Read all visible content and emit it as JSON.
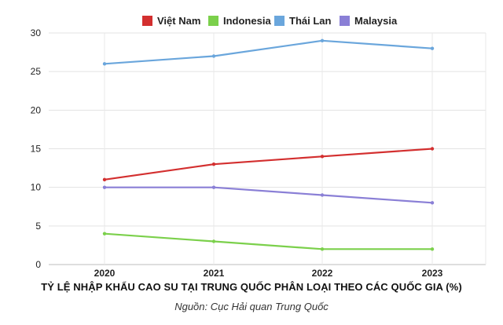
{
  "chart_data": {
    "type": "line",
    "title": "TỶ LỆ NHẬP KHẨU CAO SU TẠI TRUNG QUỐC PHÂN LOẠI THEO CÁC QUỐC GIA (%)",
    "source": "Nguồn: Cục Hải quan Trung Quốc",
    "categories": [
      "2020",
      "2021",
      "2022",
      "2023"
    ],
    "ylim": [
      0,
      30
    ],
    "yticks": [
      0,
      5,
      10,
      15,
      20,
      25,
      30
    ],
    "grid": true,
    "legend_position": "top",
    "series": [
      {
        "name": "Việt Nam",
        "color": "#d32f2f",
        "values": [
          11,
          13,
          14,
          15
        ]
      },
      {
        "name": "Indonesia",
        "color": "#7bd04b",
        "values": [
          4,
          3,
          2,
          2
        ]
      },
      {
        "name": "Thái Lan",
        "color": "#6aa6dc",
        "values": [
          26,
          27,
          29,
          28
        ]
      },
      {
        "name": "Malaysia",
        "color": "#8a7fd6",
        "values": [
          10,
          10,
          9,
          8
        ]
      }
    ]
  }
}
